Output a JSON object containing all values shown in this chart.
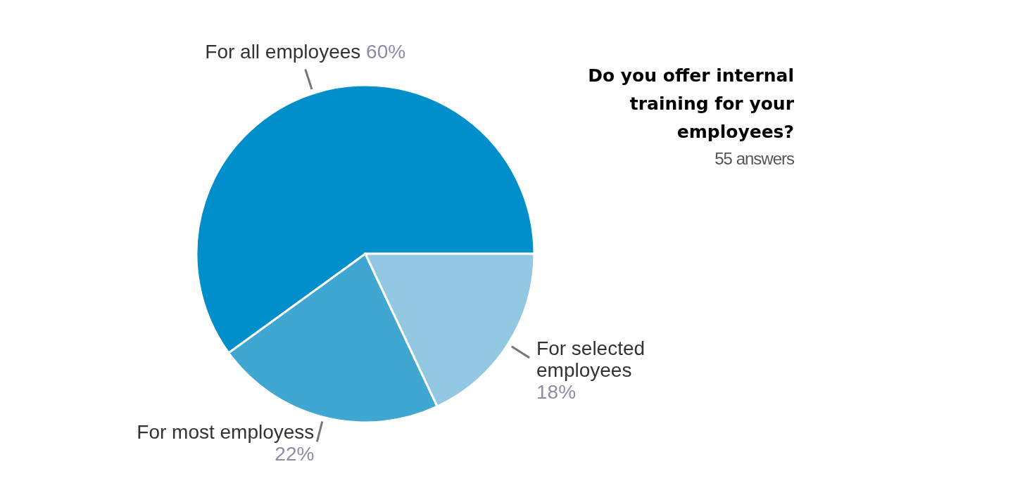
{
  "chart_data": {
    "type": "pie",
    "title": "Do you offer internal training for your employees?",
    "subtitle": "55 answers",
    "categories": [
      "For all employees",
      "For most employess",
      "For selected employees"
    ],
    "values": [
      60,
      22,
      18
    ],
    "colors": [
      "#008fcb",
      "#40a6d2",
      "#93c8e2"
    ],
    "value_labels": [
      "60%",
      "22%",
      "18%"
    ]
  }
}
